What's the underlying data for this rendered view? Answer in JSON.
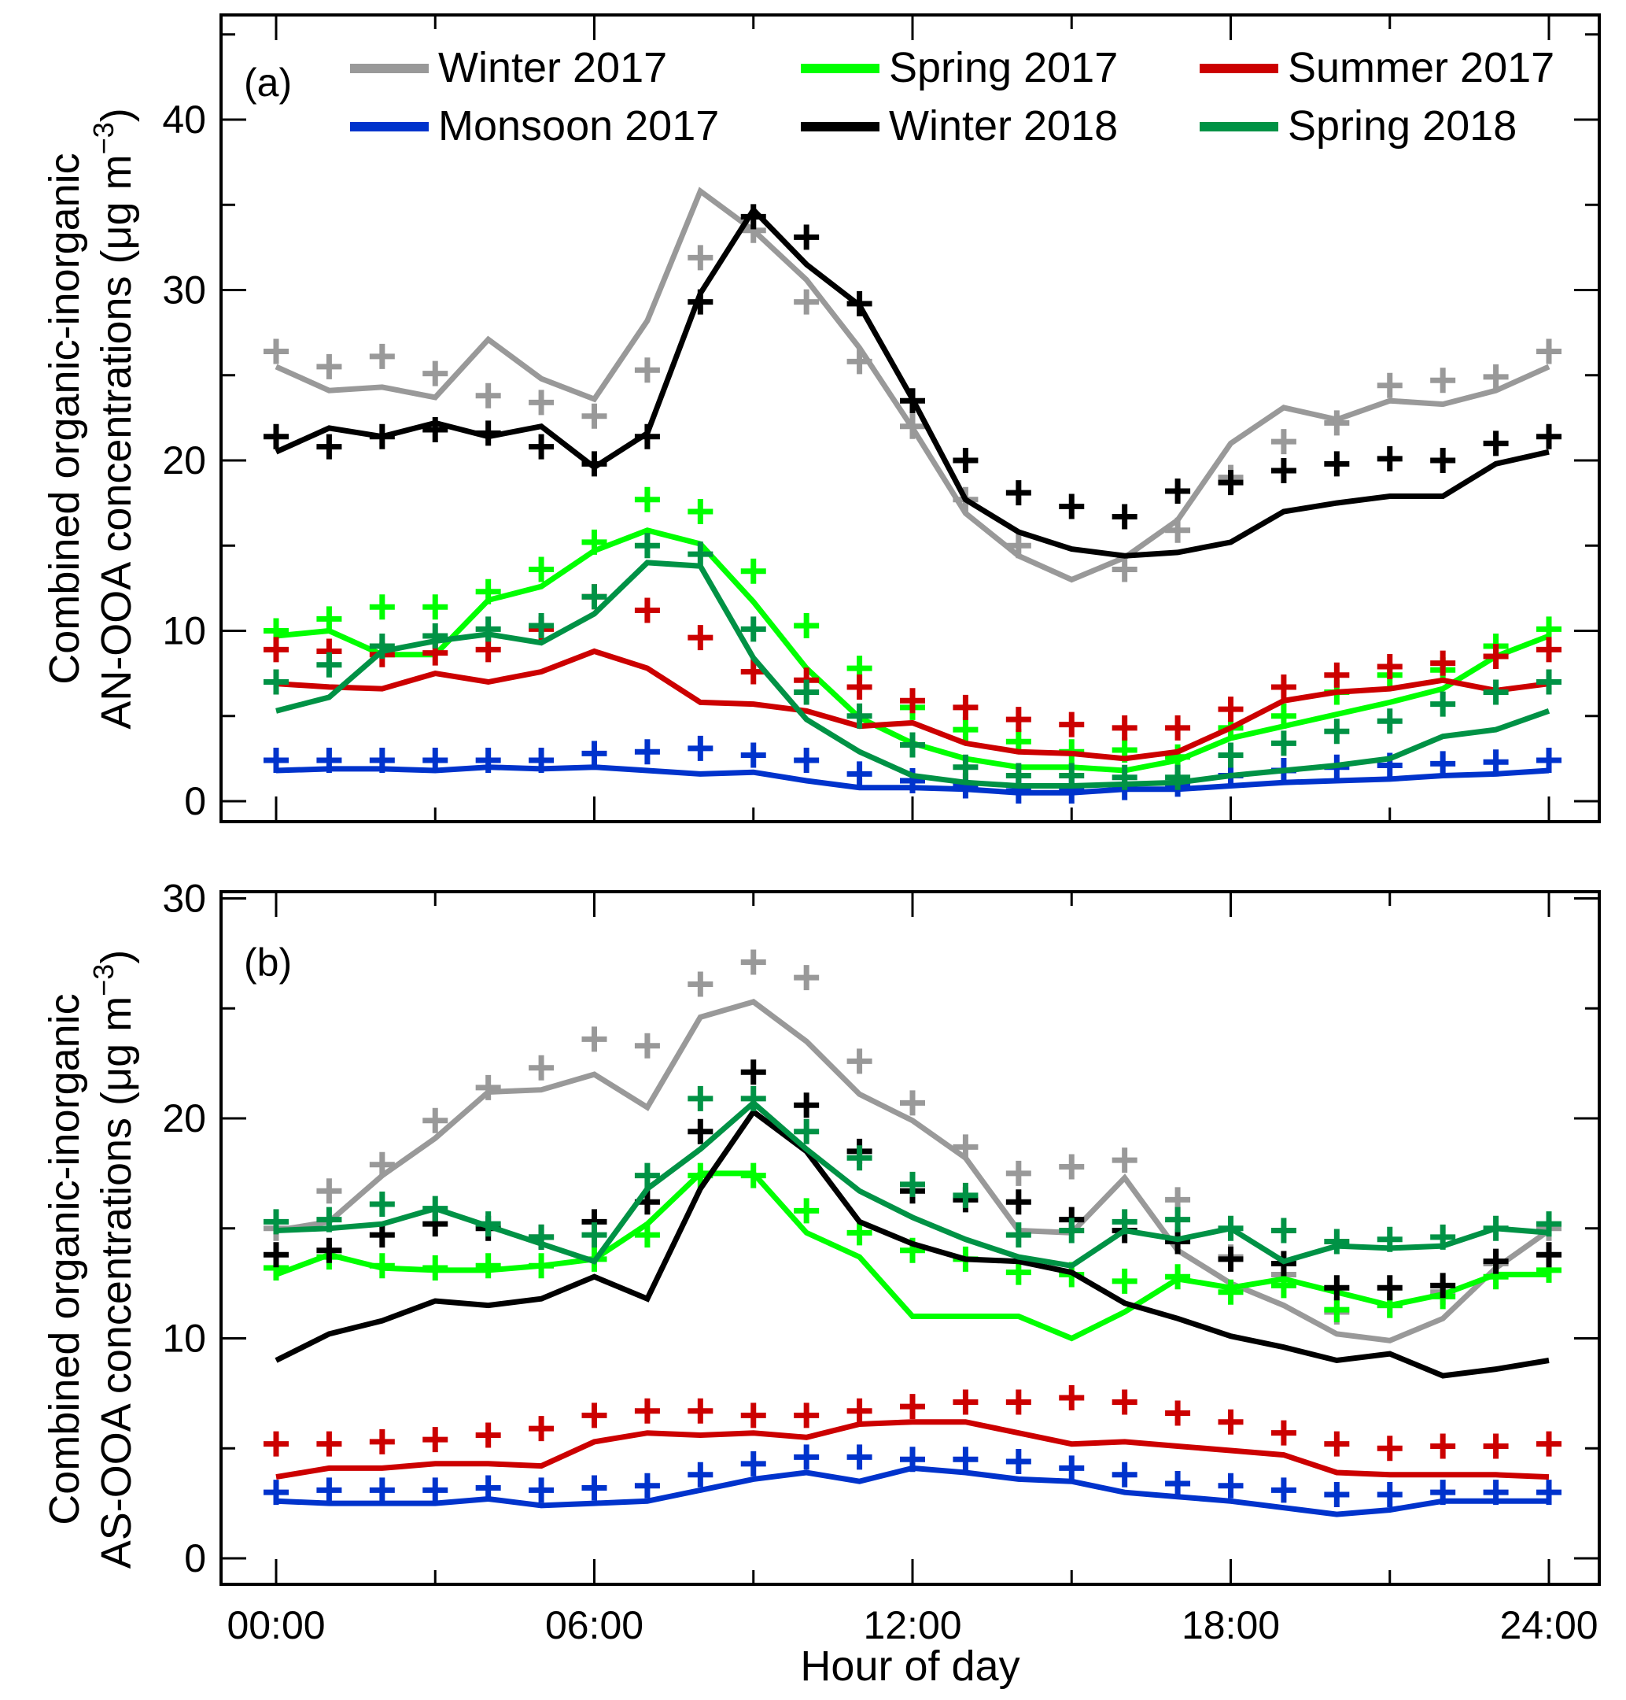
{
  "chart_data": [
    {
      "type": "line",
      "panel_label": "(a)",
      "ylabel_line1": "Combined organic-inorganic",
      "ylabel_line2": "AN-OOA concentrations (μg m",
      "ylabel_sup": "−3",
      "ylabel_close": ")",
      "xlabel": "",
      "ylim": [
        -1,
        46
      ],
      "yticks": [
        0,
        10,
        20,
        30,
        40
      ],
      "yticks_minor": [
        5,
        15,
        25,
        35,
        45
      ],
      "grid": false,
      "legend_position": "top",
      "note": "Lines = model/fit, '+' markers = measured; x = hour of day 0..24",
      "x": [
        0,
        1,
        2,
        3,
        4,
        5,
        6,
        7,
        8,
        9,
        10,
        11,
        12,
        13,
        14,
        15,
        16,
        17,
        18,
        19,
        20,
        21,
        22,
        23,
        24
      ],
      "series": [
        {
          "name": "Winter 2017",
          "color": "#999999",
          "line": [
            25.5,
            24.1,
            24.3,
            23.7,
            27.1,
            24.8,
            23.6,
            28.2,
            35.8,
            33.5,
            30.6,
            26.6,
            21.9,
            16.9,
            14.4,
            13.0,
            14.3,
            16.5,
            21.0,
            23.1,
            22.4,
            23.5,
            23.3,
            24.1,
            25.5
          ],
          "markers": [
            26.4,
            25.5,
            26.1,
            25.1,
            23.8,
            23.4,
            22.6,
            25.3,
            31.9,
            33.5,
            29.3,
            25.8,
            22.0,
            17.7,
            15.0,
            null,
            13.6,
            15.9,
            19.0,
            21.1,
            22.2,
            24.4,
            24.7,
            24.9,
            26.4
          ]
        },
        {
          "name": "Monsoon 2017",
          "color": "#0033cc",
          "line": [
            1.8,
            1.9,
            1.9,
            1.8,
            2.0,
            1.9,
            2.0,
            1.8,
            1.6,
            1.7,
            1.2,
            0.8,
            0.8,
            0.7,
            0.5,
            0.5,
            0.7,
            0.7,
            0.9,
            1.1,
            1.2,
            1.3,
            1.5,
            1.6,
            1.8
          ],
          "markers": [
            2.4,
            2.4,
            2.4,
            2.4,
            2.4,
            2.4,
            2.8,
            2.9,
            3.1,
            2.7,
            2.4,
            1.6,
            1.2,
            0.9,
            0.6,
            0.6,
            0.8,
            1.0,
            1.5,
            1.8,
            2.0,
            2.1,
            2.2,
            2.3,
            2.4
          ]
        },
        {
          "name": "Spring 2017",
          "color": "#00ff00",
          "line": [
            9.7,
            10.0,
            8.6,
            8.6,
            11.8,
            12.6,
            14.7,
            15.9,
            15.1,
            11.7,
            7.8,
            4.9,
            3.4,
            2.5,
            2.0,
            2.0,
            1.8,
            2.4,
            3.7,
            4.4,
            5.1,
            5.8,
            6.6,
            8.5,
            9.7
          ],
          "markers": [
            10.0,
            10.7,
            11.4,
            11.4,
            12.3,
            13.6,
            15.2,
            17.7,
            17.0,
            13.5,
            10.3,
            7.8,
            5.5,
            4.2,
            3.5,
            2.9,
            3.0,
            2.6,
            4.3,
            5.0,
            6.4,
            7.4,
            7.7,
            9.1,
            10.1
          ]
        },
        {
          "name": "Summer 2017",
          "color": "#cc0000",
          "line": [
            6.9,
            6.7,
            6.6,
            7.5,
            7.0,
            7.6,
            8.8,
            7.8,
            5.8,
            5.7,
            5.3,
            4.4,
            4.6,
            3.4,
            2.9,
            2.8,
            2.5,
            2.9,
            4.3,
            5.9,
            6.4,
            6.6,
            7.1,
            6.5,
            6.9
          ],
          "markers": [
            8.9,
            8.8,
            8.6,
            8.7,
            8.9,
            10.1,
            12.0,
            11.2,
            9.6,
            7.6,
            7.1,
            6.7,
            5.9,
            5.5,
            4.8,
            4.5,
            4.3,
            4.3,
            5.4,
            6.7,
            7.4,
            7.9,
            8.1,
            8.5,
            8.9
          ]
        },
        {
          "name": "Winter 2018",
          "color": "#000000",
          "line": [
            20.5,
            21.9,
            21.4,
            22.2,
            21.4,
            22.0,
            19.6,
            21.6,
            29.8,
            34.7,
            31.5,
            29.1,
            23.6,
            17.7,
            15.8,
            14.8,
            14.4,
            14.6,
            15.2,
            17.0,
            17.5,
            17.9,
            17.9,
            19.8,
            20.5
          ],
          "markers": [
            21.4,
            20.8,
            21.4,
            21.8,
            21.6,
            20.8,
            19.8,
            21.4,
            29.3,
            34.3,
            33.1,
            29.2,
            23.5,
            20.0,
            18.1,
            17.3,
            16.7,
            18.2,
            18.7,
            19.4,
            19.8,
            20.1,
            20.0,
            21.0,
            21.4
          ]
        },
        {
          "name": "Spring 2018",
          "color": "#009245",
          "line": [
            5.3,
            6.1,
            8.8,
            9.4,
            9.8,
            9.3,
            11.0,
            14.0,
            13.8,
            8.4,
            4.8,
            2.9,
            1.5,
            1.1,
            0.9,
            0.9,
            1.0,
            1.1,
            1.5,
            1.8,
            2.1,
            2.5,
            3.8,
            4.2,
            5.3
          ],
          "markers": [
            7.0,
            8.0,
            9.1,
            9.7,
            10.1,
            10.3,
            12.0,
            15.0,
            14.5,
            10.1,
            6.4,
            5.0,
            3.3,
            2.0,
            1.5,
            1.5,
            1.4,
            1.4,
            2.7,
            3.4,
            4.1,
            4.7,
            5.7,
            6.4,
            7.0
          ]
        }
      ]
    },
    {
      "type": "line",
      "panel_label": "(b)",
      "ylabel_line1": "Combined organic-inorganic",
      "ylabel_line2": "AS-OOA concentrations (μg m",
      "ylabel_sup": "−3",
      "ylabel_close": ")",
      "xlabel": "Hour of day",
      "xtick_labels": [
        "00:00",
        "06:00",
        "12:00",
        "18:00",
        "24:00"
      ],
      "xticks": [
        0,
        6,
        12,
        18,
        24
      ],
      "xticks_minor": [
        3,
        9,
        15,
        21
      ],
      "ylim": [
        -1,
        31
      ],
      "yticks": [
        0,
        10,
        20,
        30
      ],
      "yticks_minor": [
        5,
        15,
        25
      ],
      "grid": false,
      "x": [
        0,
        1,
        2,
        3,
        4,
        5,
        6,
        7,
        8,
        9,
        10,
        11,
        12,
        13,
        14,
        15,
        16,
        17,
        18,
        19,
        20,
        21,
        22,
        23,
        24
      ],
      "series": [
        {
          "name": "Winter 2017",
          "color": "#999999",
          "line": [
            14.9,
            15.3,
            17.4,
            19.1,
            21.2,
            21.3,
            22.0,
            20.5,
            24.6,
            25.3,
            23.5,
            21.1,
            19.9,
            18.2,
            14.9,
            14.8,
            17.3,
            14.0,
            12.5,
            11.5,
            10.2,
            9.9,
            10.9,
            13.2,
            14.9
          ],
          "markers": [
            15.0,
            16.7,
            17.9,
            19.9,
            21.4,
            22.3,
            23.6,
            23.3,
            26.1,
            27.1,
            26.4,
            22.6,
            20.7,
            18.7,
            17.5,
            17.8,
            18.1,
            16.3,
            13.7,
            12.9,
            11.2,
            11.5,
            12.1,
            13.4,
            15.0
          ]
        },
        {
          "name": "Monsoon 2017",
          "color": "#0033cc",
          "line": [
            2.6,
            2.5,
            2.5,
            2.5,
            2.7,
            2.4,
            2.5,
            2.6,
            3.1,
            3.6,
            3.9,
            3.5,
            4.1,
            3.9,
            3.6,
            3.5,
            3.0,
            2.8,
            2.6,
            2.3,
            2.0,
            2.2,
            2.6,
            2.6,
            2.6
          ],
          "markers": [
            3.0,
            3.1,
            3.1,
            3.1,
            3.2,
            3.1,
            3.2,
            3.3,
            3.8,
            4.3,
            4.6,
            4.6,
            4.5,
            4.5,
            4.4,
            4.1,
            3.8,
            3.4,
            3.3,
            3.1,
            2.9,
            2.9,
            3.0,
            3.0,
            3.0
          ]
        },
        {
          "name": "Spring 2017",
          "color": "#00ff00",
          "line": [
            12.9,
            13.8,
            13.2,
            13.1,
            13.1,
            13.3,
            13.6,
            15.2,
            17.5,
            17.5,
            14.8,
            13.7,
            11.0,
            11.0,
            11.0,
            10.0,
            11.2,
            12.7,
            12.3,
            12.7,
            12.1,
            11.5,
            12.0,
            12.9,
            12.9
          ],
          "markers": [
            13.2,
            13.7,
            13.3,
            13.2,
            13.3,
            13.3,
            13.6,
            14.7,
            17.4,
            17.4,
            15.8,
            14.8,
            14.0,
            13.6,
            13.0,
            12.9,
            12.6,
            12.8,
            12.1,
            12.4,
            11.3,
            11.5,
            11.9,
            12.8,
            13.1
          ]
        },
        {
          "name": "Summer 2017",
          "color": "#cc0000",
          "line": [
            3.7,
            4.1,
            4.1,
            4.3,
            4.3,
            4.2,
            5.3,
            5.7,
            5.6,
            5.7,
            5.5,
            6.1,
            6.2,
            6.2,
            5.7,
            5.2,
            5.3,
            5.1,
            4.9,
            4.7,
            3.9,
            3.8,
            3.8,
            3.8,
            3.7
          ],
          "markers": [
            5.2,
            5.2,
            5.3,
            5.4,
            5.6,
            5.9,
            6.5,
            6.7,
            6.7,
            6.5,
            6.5,
            6.7,
            6.9,
            7.1,
            7.1,
            7.3,
            7.1,
            6.6,
            6.2,
            5.7,
            5.2,
            5.0,
            5.1,
            5.1,
            5.2
          ]
        },
        {
          "name": "Winter 2018",
          "color": "#000000",
          "line": [
            9.0,
            10.2,
            10.8,
            11.7,
            11.5,
            11.8,
            12.8,
            11.8,
            16.8,
            20.3,
            18.5,
            15.3,
            14.3,
            13.6,
            13.5,
            13.0,
            11.6,
            10.9,
            10.1,
            9.6,
            9.0,
            9.3,
            8.3,
            8.6,
            9.0
          ],
          "markers": [
            13.8,
            14.0,
            14.7,
            15.2,
            15.0,
            14.6,
            15.3,
            16.2,
            19.4,
            22.1,
            20.6,
            18.5,
            16.7,
            16.3,
            16.2,
            15.4,
            14.9,
            14.4,
            13.6,
            13.4,
            12.3,
            12.3,
            12.4,
            13.5,
            13.8
          ]
        },
        {
          "name": "Spring 2018",
          "color": "#009245",
          "line": [
            14.9,
            15.0,
            15.2,
            15.9,
            15.1,
            14.3,
            13.5,
            16.8,
            18.6,
            20.7,
            18.6,
            16.7,
            15.5,
            14.5,
            13.7,
            13.3,
            14.9,
            14.5,
            15.0,
            13.5,
            14.2,
            14.1,
            14.2,
            15.0,
            14.8
          ],
          "markers": [
            15.3,
            15.4,
            16.1,
            15.9,
            15.2,
            14.6,
            14.7,
            17.4,
            20.9,
            20.9,
            19.4,
            18.2,
            17.0,
            16.5,
            14.7,
            14.9,
            15.3,
            15.4,
            15.0,
            14.9,
            14.4,
            14.5,
            14.6,
            15.0,
            15.2
          ]
        }
      ]
    }
  ]
}
